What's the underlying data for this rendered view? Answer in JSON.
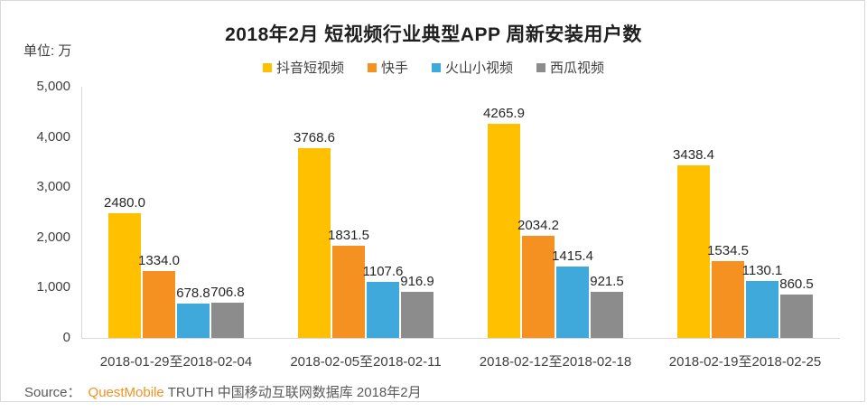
{
  "source": {
    "prefix": "Source：",
    "brand": "QuestMobile",
    "suffix": "TRUTH 中国移动互联网数据库 2018年2月"
  },
  "chart_data": {
    "type": "bar",
    "title": "2018年2月 短视频行业典型APP 周新安装用户数",
    "unit_label": "单位: 万",
    "categories": [
      "2018-01-29至2018-02-04",
      "2018-02-05至2018-02-11",
      "2018-02-12至2018-02-18",
      "2018-02-19至2018-02-25"
    ],
    "series": [
      {
        "name": "抖音短视频",
        "color": "#FFC000",
        "values": [
          2480.0,
          3768.6,
          4265.9,
          3438.4
        ]
      },
      {
        "name": "快手",
        "color": "#F59121",
        "values": [
          1334.0,
          1831.5,
          2034.2,
          1534.5
        ]
      },
      {
        "name": "火山小视频",
        "color": "#3FA9DC",
        "values": [
          678.8,
          1107.6,
          1415.4,
          1130.1
        ]
      },
      {
        "name": "西瓜视频",
        "color": "#8C8C8C",
        "values": [
          706.8,
          916.9,
          921.5,
          860.5
        ]
      }
    ],
    "ylim": [
      0,
      5000
    ],
    "ytick_interval": 1000,
    "ytick_labels": [
      "0",
      "1,000",
      "2,000",
      "3,000",
      "4,000",
      "5,000"
    ],
    "grid": false,
    "legend_position": "top",
    "value_labels": true,
    "value_label_decimals": 1,
    "axis_color": "#d9d9d9"
  }
}
